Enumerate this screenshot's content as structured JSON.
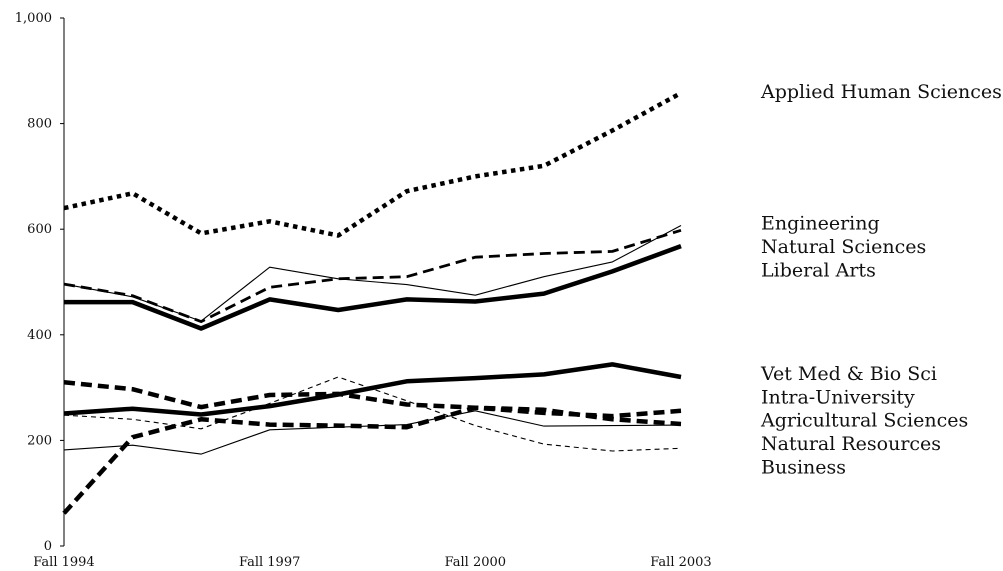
{
  "chart_data": {
    "type": "line",
    "title": "",
    "xlabel": "",
    "ylabel": "",
    "ylim": [
      0,
      1000
    ],
    "yticks": [
      0,
      200,
      400,
      600,
      800,
      1000
    ],
    "ytick_labels": [
      "0",
      "200",
      "400",
      "600",
      "800",
      "1,000"
    ],
    "x": [
      "Fall 1994",
      "Fall 1995",
      "Fall 1996",
      "Fall 1997",
      "Fall 1998",
      "Fall 1999",
      "Fall 2000",
      "Fall 2001",
      "Fall 2002",
      "Fall 2003"
    ],
    "xtick_labels": [
      "Fall 1994",
      "Fall 1997",
      "Fall 2000",
      "Fall 2003"
    ],
    "grid": false,
    "legend_position": "right",
    "series": [
      {
        "name": "Applied Human Sciences",
        "style": "dotted-thick",
        "values": [
          640,
          668,
          592,
          615,
          588,
          672,
          700,
          720,
          787,
          858
        ]
      },
      {
        "name": "Engineering",
        "style": "solid-thin",
        "values": [
          496,
          472,
          426,
          528,
          506,
          495,
          475,
          510,
          538,
          607
        ]
      },
      {
        "name": "Natural Sciences",
        "style": "dashed-medium",
        "values": [
          496,
          474,
          425,
          490,
          506,
          510,
          547,
          554,
          558,
          598
        ]
      },
      {
        "name": "Liberal Arts",
        "style": "solid-thick",
        "values": [
          462,
          462,
          412,
          467,
          447,
          467,
          463,
          478,
          520,
          568
        ]
      },
      {
        "name": "Vet Med & Bio Sci",
        "style": "solid-thick",
        "values": [
          251,
          260,
          249,
          265,
          287,
          312,
          318,
          325,
          344,
          320
        ]
      },
      {
        "name": "Intra-University",
        "style": "dashed-thick",
        "values": [
          310,
          297,
          263,
          286,
          288,
          268,
          262,
          258,
          240,
          231
        ]
      },
      {
        "name": "Agricultural Sciences",
        "style": "dashed-thick",
        "values": [
          62,
          206,
          240,
          230,
          228,
          225,
          262,
          252,
          246,
          256
        ]
      },
      {
        "name": "Natural Resources",
        "style": "dashed-thin",
        "values": [
          248,
          240,
          222,
          270,
          320,
          275,
          228,
          193,
          180,
          185
        ]
      },
      {
        "name": "Business",
        "style": "solid-thin",
        "values": [
          182,
          191,
          174,
          220,
          225,
          230,
          256,
          227,
          228,
          229
        ]
      }
    ],
    "legend": [
      {
        "name": "Applied Human Sciences",
        "pos_value": 860
      },
      {
        "name": "Engineering",
        "pos_value": 611
      },
      {
        "name": "Natural Sciences",
        "pos_value": 566
      },
      {
        "name": "Liberal Arts",
        "pos_value": 522
      },
      {
        "name": "Vet Med & Bio Sci",
        "pos_value": 326
      },
      {
        "name": "Intra-University",
        "pos_value": 281
      },
      {
        "name": "Agricultural Sciences",
        "pos_value": 238
      },
      {
        "name": "Natural Resources",
        "pos_value": 193
      },
      {
        "name": "Business",
        "pos_value": 149
      }
    ]
  }
}
